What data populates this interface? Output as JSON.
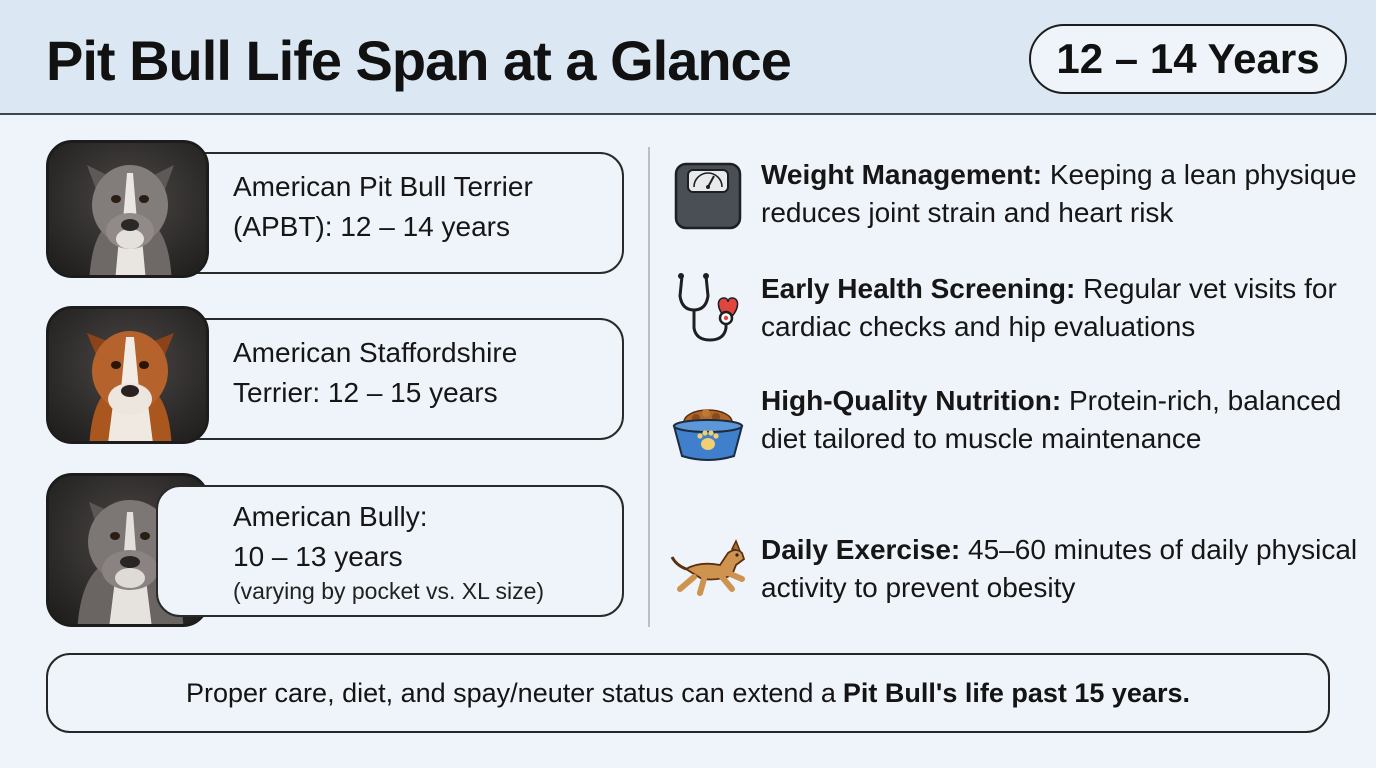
{
  "header": {
    "title": "Pit Bull Life Span at a Glance",
    "badge": "12 – 14 Years"
  },
  "breeds": [
    {
      "line1": "American Pit Bull Terrier",
      "line2": "(APBT): 12 – 14 years",
      "note": ""
    },
    {
      "line1": "American Staffordshire",
      "line2": "Terrier: 12 – 15 years",
      "note": ""
    },
    {
      "line1": "American Bully:",
      "line2": "10 – 13 years",
      "note": "(varying by pocket vs. XL size)"
    }
  ],
  "tips": [
    {
      "icon": "scale-icon",
      "title": "Weight Management:",
      "text": "Keeping a lean physique reduces joint strain and heart risk"
    },
    {
      "icon": "stethoscope-heart-icon",
      "title": "Early Health Screening:",
      "text": "Regular vet visits for cardiac checks and hip evaluations"
    },
    {
      "icon": "dog-food-bowl-icon",
      "title": "High-Quality Nutrition:",
      "text": "Protein-rich, balanced diet tailored to muscle maintenance"
    },
    {
      "icon": "running-dog-icon",
      "title": "Daily Exercise:",
      "text": "45–60 minutes of daily physical activity to prevent obesity"
    }
  ],
  "footer": {
    "text": "Proper care, diet, and spay/neuter status can extend a",
    "emphasis": "Pit Bull's life past 15 years."
  },
  "colors": {
    "background": "#eef4fa",
    "header_band": "#dbe7f2",
    "dog_grey": "#807a78",
    "dog_fawn": "#b5622c",
    "bowl_blue": "#3f7fcc",
    "heart_red": "#e0463e",
    "dog_tan": "#cf9350"
  }
}
